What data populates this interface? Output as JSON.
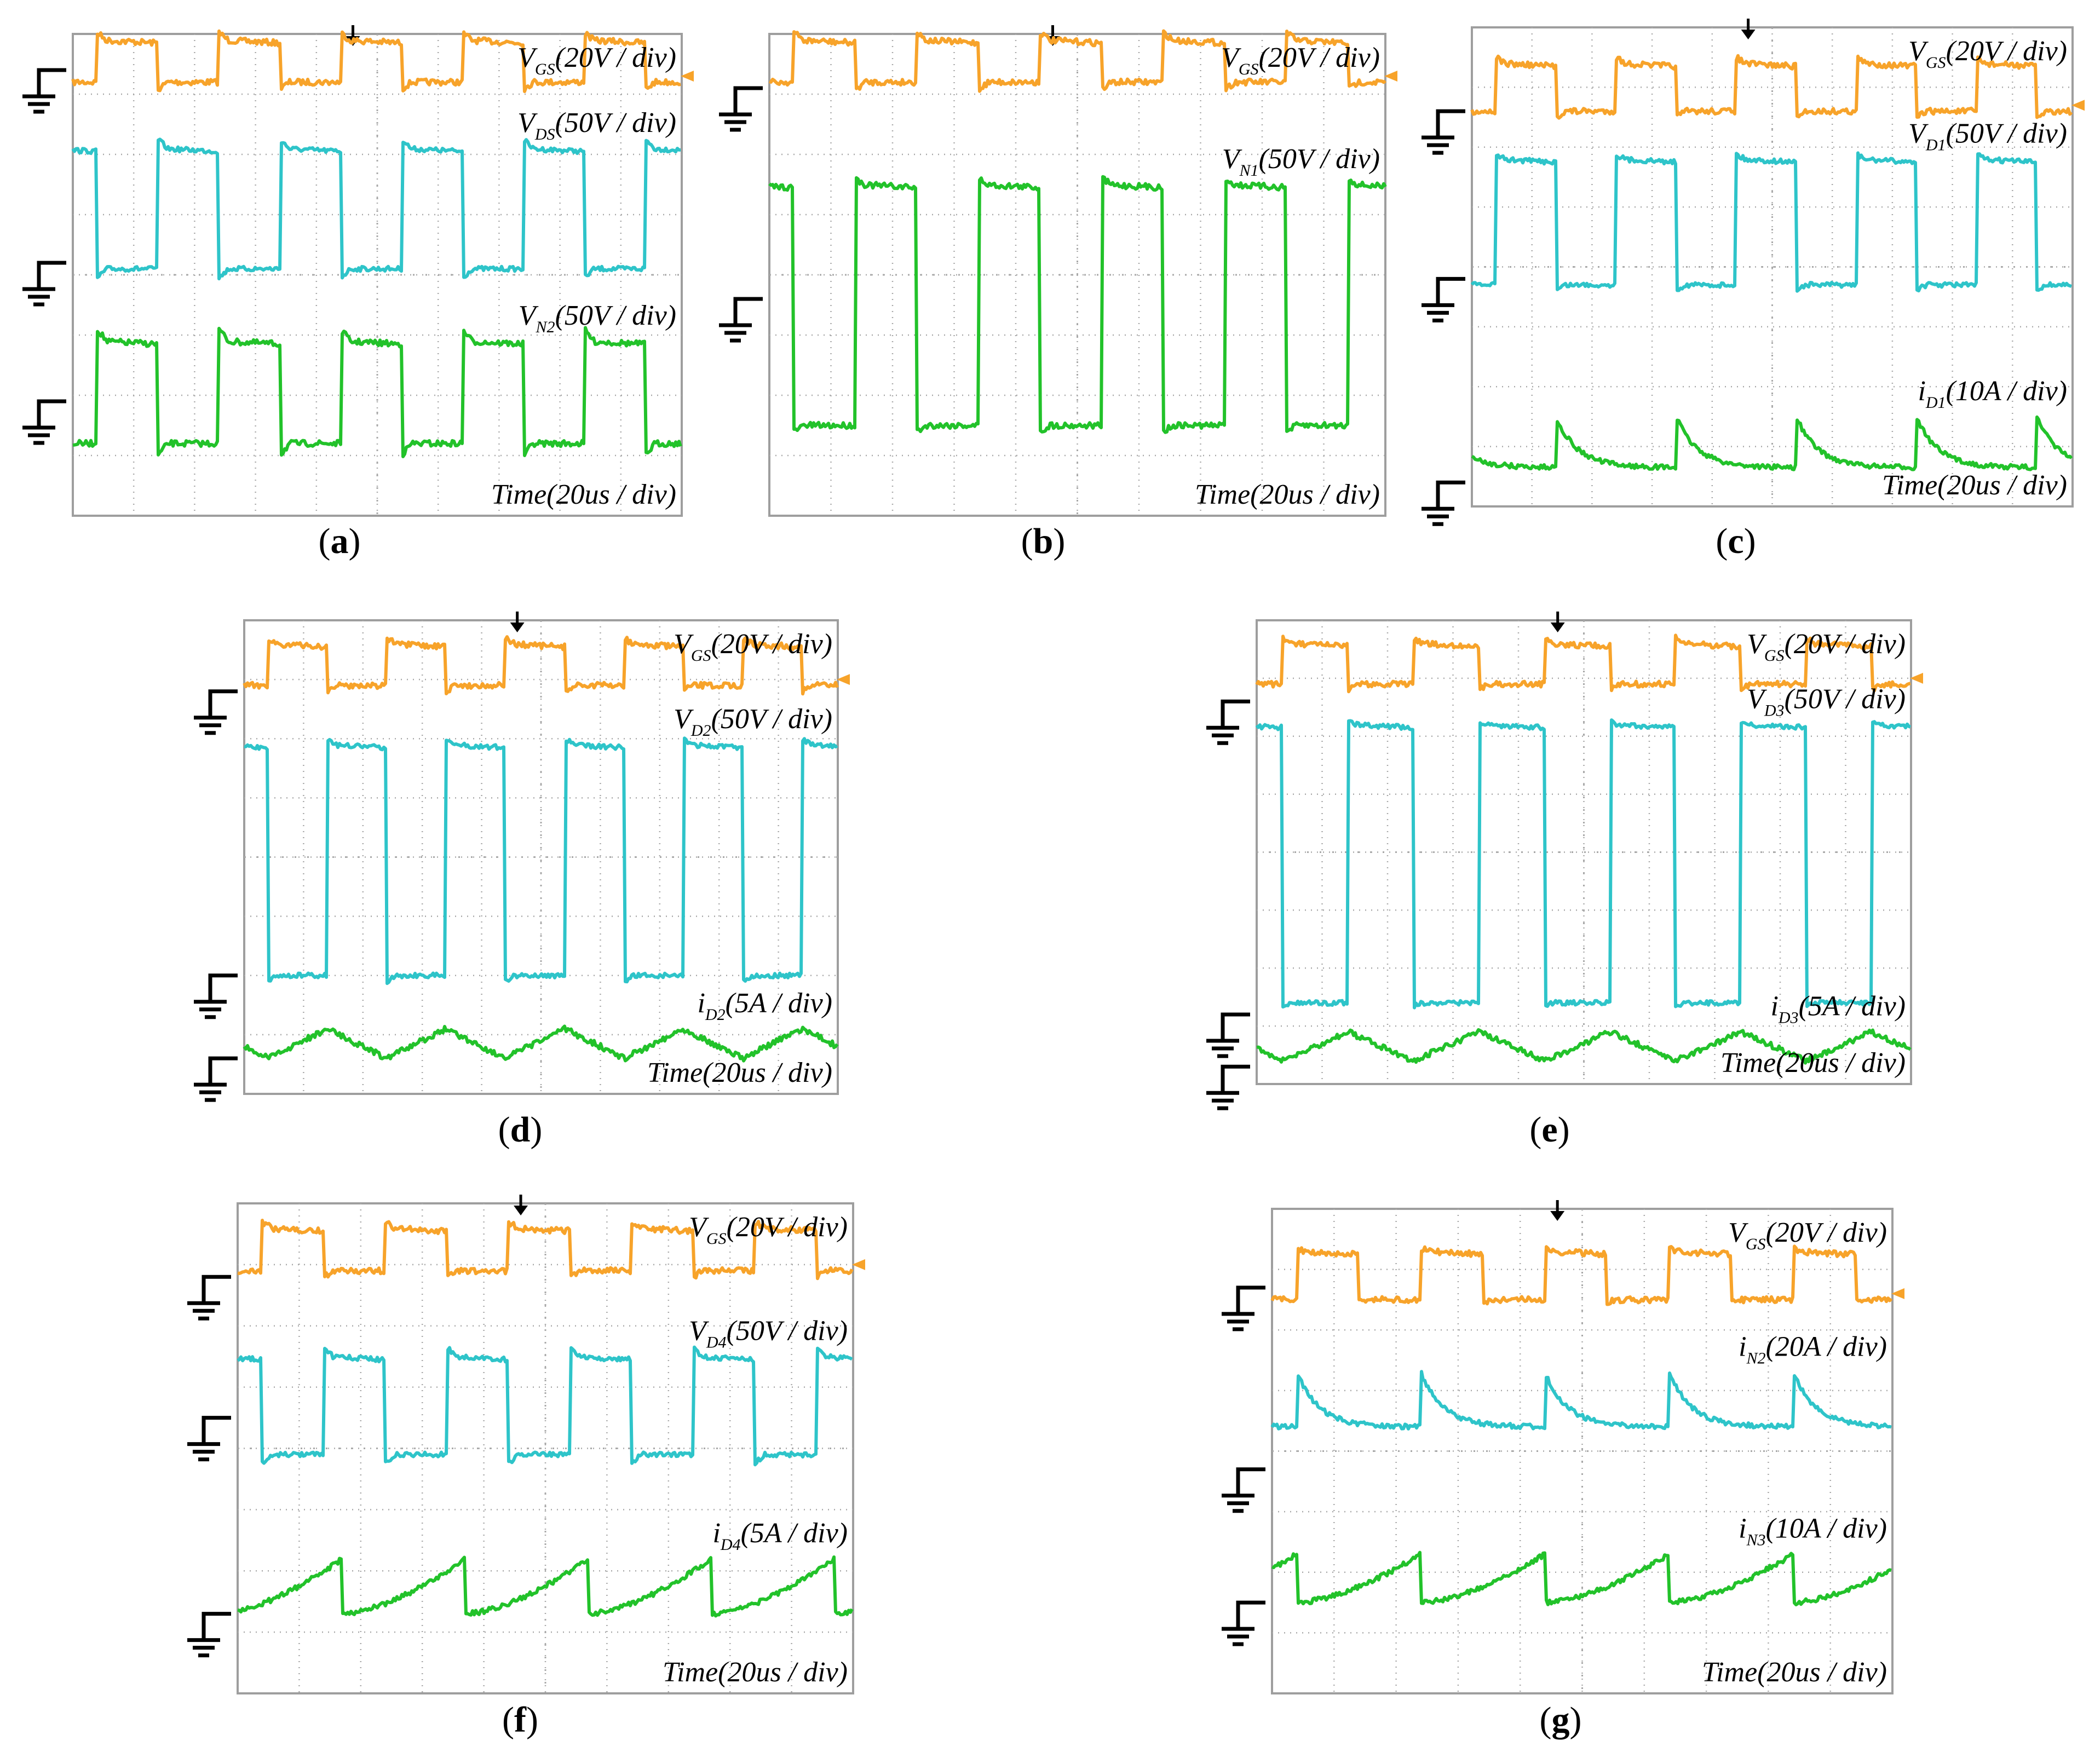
{
  "colors": {
    "vgs": "#F7A32A",
    "mid": "#2EC4C9",
    "low": "#22C22A",
    "grid": "#A8A8A8",
    "frame": "#9E9E9E",
    "ground": "#000000",
    "text": "#000000"
  },
  "chart_data": [
    {
      "type": "line",
      "panel": "a",
      "caption": "a",
      "time_label": "Time(20us / div)",
      "x_range_div": [
        0,
        10
      ],
      "y_range_div": [
        0,
        8
      ],
      "series": [
        {
          "name": "VGS",
          "label_main": "V",
          "label_sub": "GS",
          "label_scale": "(20V / div)",
          "color": "vgs",
          "shape": "square",
          "ground_div": 7.4,
          "low_div": 7.2,
          "high_div": 7.9,
          "period_div": 2.0,
          "duty": 0.5,
          "phase_div": 0.4,
          "overshoot": 0.12,
          "noise": 0.05
        },
        {
          "name": "VDS",
          "label_main": "V",
          "label_sub": "DS",
          "label_scale": "(50V / div)",
          "color": "mid",
          "shape": "square",
          "ground_div": 4.2,
          "low_div": 4.1,
          "high_div": 6.1,
          "period_div": 2.0,
          "duty": 0.5,
          "phase_div": 1.4,
          "overshoot": 0.15,
          "noise": 0.04
        },
        {
          "name": "VN2",
          "label_main": "V",
          "label_sub": "N2",
          "label_scale": "(50V / div)",
          "color": "low",
          "shape": "square",
          "ground_div": 1.9,
          "low_div": 1.2,
          "high_div": 2.9,
          "period_div": 2.0,
          "duty": 0.5,
          "phase_div": 0.4,
          "overshoot": 0.2,
          "noise": 0.05
        }
      ]
    },
    {
      "type": "line",
      "panel": "b",
      "caption": "b",
      "time_label": "Time(20us / div)",
      "x_range_div": [
        0,
        10
      ],
      "y_range_div": [
        0,
        8
      ],
      "series": [
        {
          "name": "VGS",
          "label_main": "V",
          "label_sub": "GS",
          "label_scale": "(20V / div)",
          "color": "vgs",
          "shape": "square",
          "ground_div": 7.1,
          "low_div": 7.2,
          "high_div": 7.9,
          "period_div": 2.0,
          "duty": 0.5,
          "phase_div": 0.4,
          "overshoot": 0.12,
          "noise": 0.05
        },
        {
          "name": "VN1",
          "label_main": "V",
          "label_sub": "N1",
          "label_scale": "(50V / div)",
          "color": "low",
          "shape": "square",
          "ground_div": 3.6,
          "low_div": 1.5,
          "high_div": 5.5,
          "period_div": 2.0,
          "duty": 0.5,
          "phase_div": 1.4,
          "overshoot": 0.1,
          "noise": 0.05
        }
      ]
    },
    {
      "type": "line",
      "panel": "c",
      "caption": "c",
      "time_label": "Time(20us / div)",
      "x_range_div": [
        0,
        10
      ],
      "y_range_div": [
        0,
        8
      ],
      "series": [
        {
          "name": "VGS",
          "label_main": "V",
          "label_sub": "GS",
          "label_scale": "(20V / div)",
          "color": "vgs",
          "shape": "square",
          "ground_div": 6.6,
          "low_div": 6.6,
          "high_div": 7.4,
          "period_div": 2.0,
          "duty": 0.5,
          "phase_div": 0.4,
          "overshoot": 0.1,
          "noise": 0.05
        },
        {
          "name": "VD1",
          "label_main": "V",
          "label_sub": "D1",
          "label_scale": "(50V / div)",
          "color": "mid",
          "shape": "square",
          "ground_div": 3.8,
          "low_div": 3.7,
          "high_div": 5.8,
          "period_div": 2.0,
          "duty": 0.5,
          "phase_div": 0.4,
          "overshoot": 0.08,
          "noise": 0.04
        },
        {
          "name": "iD1",
          "label_main": "i",
          "label_sub": "D1",
          "label_scale": "(10A / div)",
          "color": "low",
          "shape": "decay",
          "ground_div": 0.4,
          "low_div": 0.65,
          "high_div": 1.5,
          "period_div": 2.0,
          "duty": 0.5,
          "phase_div": 1.4,
          "overshoot": 0,
          "noise": 0.04
        }
      ]
    },
    {
      "type": "line",
      "panel": "d",
      "caption": "d",
      "time_label": "Time(20us / div)",
      "x_range_div": [
        0,
        10
      ],
      "y_range_div": [
        0,
        8
      ],
      "series": [
        {
          "name": "VGS",
          "label_main": "V",
          "label_sub": "GS",
          "label_scale": "(20V / div)",
          "color": "vgs",
          "shape": "square",
          "ground_div": 6.8,
          "low_div": 6.9,
          "high_div": 7.6,
          "period_div": 2.0,
          "duty": 0.5,
          "phase_div": 0.4,
          "overshoot": 0.1,
          "noise": 0.05
        },
        {
          "name": "VD2",
          "label_main": "V",
          "label_sub": "D2",
          "label_scale": "(50V / div)",
          "color": "mid",
          "shape": "square",
          "ground_div": 2.0,
          "low_div": 2.0,
          "high_div": 5.9,
          "period_div": 2.0,
          "duty": 0.5,
          "phase_div": 1.4,
          "overshoot": 0.1,
          "noise": 0.04
        },
        {
          "name": "iD2",
          "label_main": "i",
          "label_sub": "D2",
          "label_scale": "(5A / div)",
          "color": "low",
          "shape": "triangle",
          "ground_div": 0.6,
          "low_div": 0.6,
          "high_div": 1.1,
          "period_div": 2.0,
          "duty": 0.5,
          "phase_div": 0.4,
          "overshoot": 0,
          "noise": 0.05
        }
      ]
    },
    {
      "type": "line",
      "panel": "e",
      "caption": "e",
      "time_label": "Time(20us / div)",
      "x_range_div": [
        0,
        10
      ],
      "y_range_div": [
        0,
        8
      ],
      "series": [
        {
          "name": "VGS",
          "label_main": "V",
          "label_sub": "GS",
          "label_scale": "(20V / div)",
          "color": "vgs",
          "shape": "square",
          "ground_div": 6.6,
          "low_div": 6.9,
          "high_div": 7.6,
          "period_div": 2.0,
          "duty": 0.5,
          "phase_div": 0.4,
          "overshoot": 0.1,
          "noise": 0.05
        },
        {
          "name": "VD3",
          "label_main": "V",
          "label_sub": "D3",
          "label_scale": "(50V / div)",
          "color": "mid",
          "shape": "square",
          "ground_div": 1.2,
          "low_div": 1.4,
          "high_div": 6.2,
          "period_div": 2.0,
          "duty": 0.5,
          "phase_div": 1.4,
          "overshoot": 0.05,
          "noise": 0.04
        },
        {
          "name": "iD3",
          "label_main": "i",
          "label_sub": "D3",
          "label_scale": "(5A / div)",
          "color": "low",
          "shape": "triangle",
          "ground_div": 0.3,
          "low_div": 0.4,
          "high_div": 0.9,
          "period_div": 2.0,
          "duty": 0.5,
          "phase_div": 0.4,
          "overshoot": 0,
          "noise": 0.05
        }
      ]
    },
    {
      "type": "line",
      "panel": "f",
      "caption": "f",
      "time_label": "Time(20us / div)",
      "x_range_div": [
        0,
        10
      ],
      "y_range_div": [
        0,
        8
      ],
      "series": [
        {
          "name": "VGS",
          "label_main": "V",
          "label_sub": "GS",
          "label_scale": "(20V / div)",
          "color": "vgs",
          "shape": "square",
          "ground_div": 6.8,
          "low_div": 6.9,
          "high_div": 7.6,
          "period_div": 2.0,
          "duty": 0.5,
          "phase_div": 0.4,
          "overshoot": 0.1,
          "noise": 0.05
        },
        {
          "name": "VD4",
          "label_main": "V",
          "label_sub": "D4",
          "label_scale": "(50V / div)",
          "color": "mid",
          "shape": "square",
          "ground_div": 4.5,
          "low_div": 3.9,
          "high_div": 5.5,
          "period_div": 2.0,
          "duty": 0.5,
          "phase_div": 1.4,
          "overshoot": 0.15,
          "noise": 0.04
        },
        {
          "name": "iD4",
          "label_main": "i",
          "label_sub": "D4",
          "label_scale": "(5A / div)",
          "color": "low",
          "shape": "ramp",
          "ground_div": 1.3,
          "low_div": 1.3,
          "high_div": 2.2,
          "period_div": 2.0,
          "duty": 0.5,
          "phase_div": 1.7,
          "overshoot": 0,
          "noise": 0.04
        }
      ]
    },
    {
      "type": "line",
      "panel": "g",
      "caption": "g",
      "time_label": "Time(20us / div)",
      "x_range_div": [
        0,
        10
      ],
      "y_range_div": [
        0,
        8
      ],
      "series": [
        {
          "name": "VGS",
          "label_main": "V",
          "label_sub": "GS",
          "label_scale": "(20V / div)",
          "color": "vgs",
          "shape": "square",
          "ground_div": 6.7,
          "low_div": 6.5,
          "high_div": 7.3,
          "period_div": 2.0,
          "duty": 0.5,
          "phase_div": 0.4,
          "overshoot": 0.05,
          "noise": 0.05
        },
        {
          "name": "iN2",
          "label_main": "i",
          "label_sub": "N2",
          "label_scale": "(20A / div)",
          "color": "mid",
          "shape": "decay",
          "ground_div": 3.7,
          "low_div": 4.4,
          "high_div": 5.3,
          "period_div": 2.0,
          "duty": 0.5,
          "phase_div": 0.4,
          "overshoot": 0,
          "noise": 0.04
        },
        {
          "name": "iN3",
          "label_main": "i",
          "label_sub": "N3",
          "label_scale": "(10A / div)",
          "color": "low",
          "shape": "ramp",
          "ground_div": 1.5,
          "low_div": 1.5,
          "high_div": 2.3,
          "period_div": 2.0,
          "duty": 0.5,
          "phase_div": 0.4,
          "overshoot": 0,
          "noise": 0.04
        }
      ]
    }
  ]
}
